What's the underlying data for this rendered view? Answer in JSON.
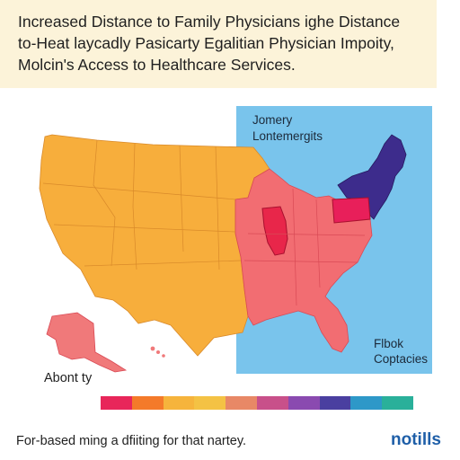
{
  "title": {
    "line1": "Increased Distance to Family Physicians ighe Distance",
    "line2": "to-Heat laycadly Pasicarty Egalitian Physician Impoity,",
    "line3": "Molcin's Access to Healthcare Services."
  },
  "inset": {
    "label_top_line1": "Jomery",
    "label_top_line2": "Lontemergits",
    "label_bottom_line1": "Flbok",
    "label_bottom_line2": "Coptacies"
  },
  "legend": {
    "label": "Abont ty",
    "colors": [
      "#e8265a",
      "#f47a2a",
      "#f6b43c",
      "#f4c244",
      "#e88866",
      "#c8508a",
      "#8a4ab0",
      "#4a3fa0",
      "#2e98c8",
      "#2ab09a"
    ]
  },
  "footer": {
    "caption": "For-based ming a dfiiting for that nartey.",
    "brand": "notills"
  },
  "map_colors": {
    "west": "#f7ae3c",
    "south_east": "#f26d72",
    "illinois": "#e8264a",
    "pennsylvania": "#e81f5a",
    "north_east": "#3d2c8c",
    "inset_sea": "#79c4ec",
    "alaska": "#f0797a"
  }
}
